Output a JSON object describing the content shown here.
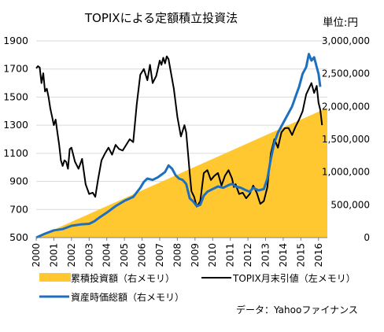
{
  "chart_data": {
    "type": "line",
    "title": "TOPIXによる定額積立投資法",
    "unit_label": "単位:円",
    "source_note": "データ：Yahooファイナンス",
    "grid": true,
    "legend_position": "bottom",
    "x_ticks": [
      "2000",
      "2001",
      "2002",
      "2003",
      "2004",
      "2005",
      "2006",
      "2007",
      "2008",
      "2009",
      "2010",
      "2011",
      "2012",
      "2013",
      "2014",
      "2015",
      "2016"
    ],
    "x_range": [
      2000,
      2016.5
    ],
    "y_left": {
      "range": [
        500,
        1900
      ],
      "ticks": [
        "500",
        "700",
        "900",
        "1100",
        "1300",
        "1500",
        "1700",
        "1900"
      ]
    },
    "y_right": {
      "range": [
        0,
        3000000
      ],
      "ticks": [
        "0",
        "500,000",
        "1,000,000",
        "1,500,000",
        "2,000,000",
        "2,500,000",
        "3,000,000"
      ]
    },
    "series": [
      {
        "name": "累積投資額（右メモリ）",
        "kind": "area",
        "axis": "right",
        "color": "#FFC830",
        "x": [
          2000,
          2016.5
        ],
        "y": [
          0,
          1980000
        ]
      },
      {
        "name": "TOPIX月末引値（左メモリ）",
        "kind": "line",
        "axis": "left",
        "color": "#000000",
        "x": [
          2000.0,
          2000.1,
          2000.2,
          2000.3,
          2000.4,
          2000.5,
          2000.6,
          2000.7,
          2000.8,
          2000.9,
          2001.0,
          2001.1,
          2001.2,
          2001.3,
          2001.4,
          2001.5,
          2001.6,
          2001.7,
          2001.8,
          2001.9,
          2002.0,
          2002.2,
          2002.4,
          2002.6,
          2002.8,
          2003.0,
          2003.2,
          2003.35,
          2003.5,
          2003.7,
          2003.9,
          2004.1,
          2004.3,
          2004.5,
          2004.7,
          2004.9,
          2005.1,
          2005.3,
          2005.5,
          2005.7,
          2005.9,
          2006.1,
          2006.3,
          2006.45,
          2006.6,
          2006.8,
          2007.0,
          2007.1,
          2007.2,
          2007.3,
          2007.4,
          2007.5,
          2007.6,
          2007.8,
          2008.0,
          2008.2,
          2008.4,
          2008.5,
          2008.6,
          2008.7,
          2008.8,
          2008.95,
          2009.1,
          2009.3,
          2009.5,
          2009.7,
          2009.9,
          2010.1,
          2010.3,
          2010.5,
          2010.7,
          2010.9,
          2011.1,
          2011.2,
          2011.3,
          2011.5,
          2011.7,
          2011.9,
          2012.1,
          2012.3,
          2012.5,
          2012.7,
          2012.9,
          2013.1,
          2013.3,
          2013.5,
          2013.7,
          2013.9,
          2014.1,
          2014.3,
          2014.5,
          2014.7,
          2014.9,
          2015.1,
          2015.3,
          2015.45,
          2015.6,
          2015.75,
          2015.9,
          2016.0,
          2016.1,
          2016.2
        ],
        "y": [
          1705,
          1720,
          1710,
          1600,
          1670,
          1540,
          1560,
          1500,
          1420,
          1360,
          1300,
          1340,
          1250,
          1160,
          1050,
          1010,
          1050,
          1040,
          990,
          1130,
          1140,
          1040,
          990,
          1060,
          880,
          810,
          820,
          790,
          910,
          1050,
          1100,
          1140,
          1090,
          1160,
          1130,
          1120,
          1160,
          1200,
          1180,
          1450,
          1660,
          1700,
          1620,
          1730,
          1600,
          1650,
          1760,
          1730,
          1780,
          1740,
          1790,
          1770,
          1700,
          1560,
          1360,
          1220,
          1300,
          1250,
          1110,
          960,
          830,
          790,
          720,
          760,
          960,
          980,
          910,
          940,
          960,
          870,
          940,
          980,
          920,
          860,
          880,
          810,
          820,
          780,
          810,
          870,
          820,
          740,
          760,
          860,
          1100,
          1200,
          1140,
          1250,
          1280,
          1280,
          1230,
          1290,
          1340,
          1400,
          1520,
          1560,
          1600,
          1530,
          1580,
          1460,
          1410,
          1300
        ]
      },
      {
        "name": "資産時価総額（右メモリ）",
        "kind": "line",
        "axis": "right",
        "color": "#1F6FBF",
        "x": [
          2000.0,
          2000.5,
          2001.0,
          2001.5,
          2002.0,
          2002.5,
          2003.0,
          2003.3,
          2003.6,
          2004.0,
          2004.5,
          2005.0,
          2005.5,
          2005.9,
          2006.1,
          2006.3,
          2006.6,
          2006.9,
          2007.1,
          2007.3,
          2007.5,
          2007.7,
          2007.9,
          2008.1,
          2008.3,
          2008.5,
          2008.7,
          2008.9,
          2009.1,
          2009.3,
          2009.5,
          2009.7,
          2010.0,
          2010.3,
          2010.6,
          2010.9,
          2011.1,
          2011.3,
          2011.6,
          2011.9,
          2012.1,
          2012.3,
          2012.6,
          2012.9,
          2013.1,
          2013.3,
          2013.5,
          2013.7,
          2013.9,
          2014.1,
          2014.3,
          2014.5,
          2014.7,
          2014.9,
          2015.1,
          2015.3,
          2015.45,
          2015.6,
          2015.75,
          2015.9,
          2016.0,
          2016.1
        ],
        "y": [
          0,
          60000,
          110000,
          130000,
          180000,
          200000,
          210000,
          250000,
          310000,
          380000,
          480000,
          560000,
          620000,
          760000,
          850000,
          900000,
          880000,
          920000,
          960000,
          1000000,
          1100000,
          1050000,
          950000,
          900000,
          880000,
          820000,
          600000,
          550000,
          480000,
          500000,
          640000,
          700000,
          740000,
          780000,
          760000,
          800000,
          820000,
          780000,
          760000,
          720000,
          700000,
          760000,
          720000,
          740000,
          900000,
          1200000,
          1450000,
          1600000,
          1700000,
          1800000,
          1900000,
          2000000,
          2150000,
          2300000,
          2500000,
          2600000,
          2800000,
          2700000,
          2750000,
          2600000,
          2500000,
          2300000
        ]
      }
    ]
  }
}
